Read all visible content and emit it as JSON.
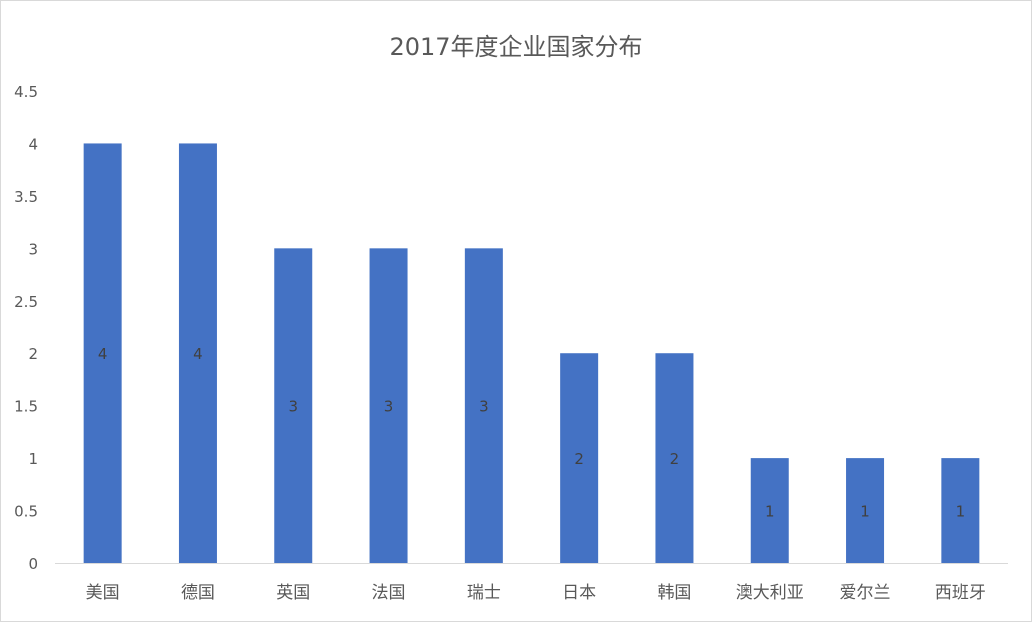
{
  "chart_data": {
    "type": "bar",
    "title": "2017年度企业国家分布",
    "categories": [
      "美国",
      "德国",
      "英国",
      "法国",
      "瑞士",
      "日本",
      "韩国",
      "澳大利亚",
      "爱尔兰",
      "西班牙"
    ],
    "values": [
      4,
      4,
      3,
      3,
      3,
      2,
      2,
      1,
      1,
      1
    ],
    "ylim": [
      0,
      4.5
    ],
    "yticks": [
      "0",
      "0.5",
      "1",
      "1.5",
      "2",
      "2.5",
      "3",
      "3.5",
      "4",
      "4.5"
    ],
    "data_labels": [
      "4",
      "4",
      "3",
      "3",
      "3",
      "2",
      "2",
      "1",
      "1",
      "1"
    ],
    "grid": false,
    "legend": "none",
    "colors": {
      "bar": "#4472c4",
      "axis_line": "#d9d9d9",
      "tick_text": "#595959",
      "data_label": "#404040"
    }
  }
}
